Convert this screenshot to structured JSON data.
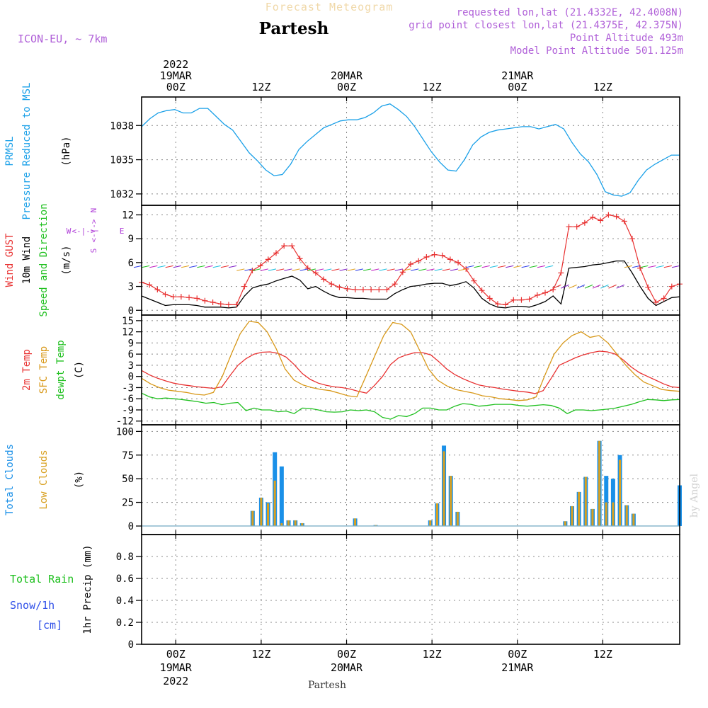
{
  "header": {
    "title": "Forecast Meteogram",
    "location": "Partesh",
    "model": "ICON-EU, ~ 7km",
    "requested": "requested lon,lat (21.4332E, 42.4008N)",
    "grid_point": "grid point closest lon,lat (21.4375E, 42.375N)",
    "point_altitude": "Point Altitude 493m",
    "model_altitude": "Model Point Altitude 501.125m"
  },
  "footer": {
    "location": "Partesh",
    "watermark": "by Angel"
  },
  "colors": {
    "pressure": "#1aa0e8",
    "gust": "#e83030",
    "wind": "#000000",
    "direction": "#20c020",
    "t2m": "#e83030",
    "sfc": "#d89818",
    "dewpt": "#20c020",
    "total_cloud": "#1a90e8",
    "low_cloud": "#d8a020",
    "rain": "#20c020",
    "snow": "#3050e8",
    "compass": "#b040d8",
    "grid": "#888888"
  },
  "chart_data": {
    "type": "meteogram",
    "time_start_hours": -4,
    "time_end_hours": 59,
    "top_axis": [
      {
        "hour": 0,
        "lines": [
          "2022",
          "19MAR",
          "00Z"
        ]
      },
      {
        "hour": 10,
        "lines": [
          "12Z"
        ]
      },
      {
        "hour": 20,
        "lines": [
          "20MAR",
          "00Z"
        ]
      },
      {
        "hour": 30,
        "lines": [
          "12Z"
        ]
      },
      {
        "hour": 40,
        "lines": [
          "21MAR",
          "00Z"
        ]
      },
      {
        "hour": 50,
        "lines": [
          "12Z"
        ]
      }
    ],
    "bottom_axis": [
      {
        "hour": 0,
        "lines": [
          "00Z",
          "19MAR",
          "2022"
        ]
      },
      {
        "hour": 10,
        "lines": [
          "12Z"
        ]
      },
      {
        "hour": 20,
        "lines": [
          "00Z",
          "20MAR"
        ]
      },
      {
        "hour": 30,
        "lines": [
          "12Z"
        ]
      },
      {
        "hour": 40,
        "lines": [
          "00Z",
          "21MAR"
        ]
      },
      {
        "hour": 50,
        "lines": [
          "12Z"
        ]
      }
    ],
    "panels": [
      {
        "id": "pressure",
        "ylabels": [
          {
            "text": "PRMSL",
            "color": "#1aa0e8"
          },
          {
            "text": "Pressure Reduced to MSL",
            "color": "#1aa0e8"
          },
          {
            "text": "(hPa)",
            "color": "#000000"
          }
        ],
        "ylim": [
          1031,
          1040.5
        ],
        "ticks": [
          1032,
          1035,
          1038
        ],
        "series": [
          {
            "name": "PRMSL",
            "values": [
              1037.9,
              1038.6,
              1039.1,
              1039.3,
              1039.4,
              1039.1,
              1039.1,
              1039.5,
              1039.5,
              1038.8,
              1038.1,
              1037.6,
              1036.6,
              1035.6,
              1034.9,
              1034.1,
              1033.6,
              1033.7,
              1034.6,
              1035.9,
              1036.6,
              1037.2,
              1037.8,
              1038.1,
              1038.4,
              1038.5,
              1038.5,
              1038.7,
              1039.1,
              1039.7,
              1039.9,
              1039.4,
              1038.8,
              1037.9,
              1036.8,
              1035.7,
              1034.8,
              1034.1,
              1034.0,
              1035.0,
              1036.3,
              1037.0,
              1037.4,
              1037.6,
              1037.7,
              1037.8,
              1037.9,
              1037.9,
              1037.7,
              1037.9,
              1038.1,
              1037.7,
              1036.5,
              1035.5,
              1034.8,
              1033.7,
              1032.2,
              1031.9,
              1031.8,
              1032.1,
              1033.2,
              1034.1,
              1034.6,
              1035.0,
              1035.4,
              1035.4
            ]
          }
        ]
      },
      {
        "id": "wind",
        "ylabels": [
          {
            "text": "Wind GUST",
            "color": "#e83030"
          },
          {
            "text": "10m Wind",
            "color": "#000000"
          },
          {
            "text": "Speed and Direction",
            "color": "#20c020"
          },
          {
            "text": "(m/s)",
            "color": "#000000"
          }
        ],
        "ylim": [
          -0.6,
          13.2
        ],
        "ticks": [
          0,
          3,
          6,
          9,
          12
        ],
        "compass": {
          "north": "N",
          "south": "S",
          "west": "W",
          "east": "E",
          "axis": "<-|->"
        },
        "series": [
          {
            "name": "Wind GUST",
            "values": [
              3.5,
              3.2,
              2.6,
              2.0,
              1.7,
              1.7,
              1.6,
              1.5,
              1.2,
              1.0,
              0.8,
              0.7,
              0.7,
              3.0,
              5.0,
              5.6,
              6.4,
              7.2,
              8.1,
              8.1,
              6.5,
              5.3,
              4.7,
              3.9,
              3.3,
              2.9,
              2.7,
              2.6,
              2.6,
              2.6,
              2.6,
              2.6,
              3.3,
              4.8,
              5.8,
              6.2,
              6.7,
              7.0,
              6.9,
              6.4,
              6.0,
              5.2,
              3.7,
              2.5,
              1.5,
              0.8,
              0.7,
              1.3,
              1.3,
              1.4,
              1.9,
              2.2,
              2.6,
              4.7,
              10.5,
              10.5,
              11.0,
              11.7,
              11.3,
              12.0,
              11.8,
              11.2,
              9.0,
              5.3,
              2.9,
              1.0,
              1.5,
              3.0,
              3.3
            ]
          },
          {
            "name": "10m Wind",
            "values": [
              1.8,
              1.4,
              1.0,
              0.6,
              0.7,
              0.7,
              0.7,
              0.6,
              0.4,
              0.4,
              0.4,
              0.3,
              0.4,
              1.8,
              2.8,
              3.1,
              3.3,
              3.7,
              4.0,
              4.3,
              3.8,
              2.7,
              3.0,
              2.4,
              1.9,
              1.6,
              1.6,
              1.5,
              1.5,
              1.4,
              1.4,
              1.4,
              2.1,
              2.6,
              3.0,
              3.1,
              3.3,
              3.4,
              3.4,
              3.1,
              3.3,
              3.6,
              2.8,
              1.5,
              0.8,
              0.4,
              0.3,
              0.5,
              0.5,
              0.4,
              0.7,
              1.1,
              1.8,
              0.8,
              5.3,
              5.4,
              5.5,
              5.7,
              5.8,
              6.0,
              6.2,
              6.2,
              4.7,
              3.0,
              1.5,
              0.6,
              1.1,
              1.6,
              1.7
            ]
          },
          {
            "name": "Direction",
            "y_level": [
              5.6,
              5.6,
              5.6,
              5.6,
              5.6,
              5.6,
              5.6,
              5.6,
              5.6,
              5.6,
              5.6,
              5.6,
              5.6,
              5.2,
              5.2,
              5.2,
              5.2,
              5.2,
              5.2,
              5.2,
              5.2,
              5.2,
              5.2,
              5.2,
              5.2,
              5.2,
              5.2,
              5.2,
              5.2,
              5.2,
              5.2,
              5.2,
              5.2,
              5.2,
              5.2,
              5.2,
              5.2,
              5.2,
              5.2,
              5.2,
              5.2,
              5.2,
              5.6,
              5.6,
              5.6,
              5.6,
              5.6,
              5.6,
              5.6,
              5.6,
              5.6,
              5.6,
              5.6,
              3.2,
              3.2,
              3.2,
              3.2,
              3.2,
              3.2,
              3.2,
              3.2,
              3.2,
              5.6,
              5.6,
              5.6,
              5.6,
              5.6,
              5.6,
              5.6
            ]
          }
        ]
      },
      {
        "id": "temperature",
        "ylabels": [
          {
            "text": "2m Temp",
            "color": "#e83030"
          },
          {
            "text": "SFC Temp",
            "color": "#d89818"
          },
          {
            "text": "dewpt Temp",
            "color": "#20c020"
          },
          {
            "text": "(C)",
            "color": "#000000"
          }
        ],
        "ylim": [
          -13,
          16.5
        ],
        "ticks": [
          -12,
          -9,
          -6,
          -3,
          0,
          3,
          6,
          9,
          12,
          15
        ],
        "series": [
          {
            "name": "2m Temp",
            "values": [
              1.6,
              0.4,
              -0.5,
              -1.2,
              -1.8,
              -2.2,
              -2.5,
              -2.8,
              -3.0,
              -3.2,
              -2.8,
              0.2,
              3.0,
              4.8,
              6.0,
              6.5,
              6.6,
              6.2,
              5.2,
              3.2,
              0.8,
              -0.8,
              -1.8,
              -2.4,
              -2.8,
              -3.0,
              -3.4,
              -4.0,
              -4.5,
              -2.4,
              0.0,
              3.2,
              5.0,
              5.8,
              6.4,
              6.4,
              5.8,
              4.0,
              2.0,
              0.5,
              -0.6,
              -1.5,
              -2.3,
              -2.7,
              -3.0,
              -3.4,
              -3.7,
              -4.0,
              -4.2,
              -4.6,
              -3.8,
              -0.5,
              3.0,
              4.0,
              5.0,
              5.8,
              6.4,
              6.8,
              6.6,
              6.0,
              4.4,
              2.5,
              1.0,
              0.0,
              -1.0,
              -2.0,
              -2.8,
              -3.0
            ]
          },
          {
            "name": "SFC Temp",
            "values": [
              -0.5,
              -2.0,
              -3.0,
              -3.7,
              -4.0,
              -4.3,
              -4.8,
              -5.0,
              -4.3,
              0.0,
              6.0,
              11.5,
              14.8,
              14.5,
              12.0,
              7.5,
              2.0,
              -1.0,
              -2.3,
              -3.0,
              -3.5,
              -3.8,
              -4.5,
              -5.2,
              -5.5,
              0.0,
              5.5,
              11.0,
              14.5,
              14.0,
              12.0,
              7.0,
              2.0,
              -1.0,
              -2.5,
              -3.5,
              -4.0,
              -4.5,
              -5.2,
              -5.5,
              -6.0,
              -6.2,
              -6.5,
              -6.3,
              -5.5,
              0.5,
              6.0,
              9.0,
              11.0,
              12.0,
              10.5,
              11.0,
              9.0,
              6.0,
              3.0,
              0.5,
              -1.5,
              -2.5,
              -3.5,
              -3.8,
              -4.0
            ]
          },
          {
            "name": "dewpt Temp",
            "values": [
              -4.5,
              -5.5,
              -6.0,
              -5.8,
              -6.0,
              -6.2,
              -6.5,
              -6.8,
              -7.2,
              -7.0,
              -7.6,
              -7.2,
              -7.0,
              -9.2,
              -8.5,
              -9.0,
              -9.0,
              -9.5,
              -9.3,
              -10.0,
              -8.5,
              -8.6,
              -9.0,
              -9.5,
              -9.6,
              -9.5,
              -9.0,
              -9.2,
              -9.0,
              -9.5,
              -11.0,
              -11.5,
              -10.5,
              -10.8,
              -10.0,
              -8.5,
              -8.5,
              -9.0,
              -9.0,
              -8.0,
              -7.3,
              -7.5,
              -8.0,
              -7.8,
              -7.5,
              -7.5,
              -7.5,
              -7.8,
              -8.0,
              -7.8,
              -7.6,
              -7.8,
              -8.5,
              -10.0,
              -9.0,
              -9.0,
              -9.2,
              -9.0,
              -8.8,
              -8.5,
              -8.0,
              -7.5,
              -6.8,
              -6.2,
              -6.3,
              -6.5,
              -6.3,
              -6.2
            ]
          }
        ]
      },
      {
        "id": "clouds",
        "ylabels": [
          {
            "text": "Total Clouds",
            "color": "#1a90e8"
          },
          {
            "text": "Low Clouds",
            "color": "#d8a020"
          },
          {
            "text": "(%)",
            "color": "#000000"
          }
        ],
        "ylim": [
          -9,
          107
        ],
        "ticks": [
          0,
          25,
          50,
          75,
          100
        ],
        "bars": [
          {
            "hour": 9.0,
            "total": 16,
            "low": 16
          },
          {
            "hour": 10.0,
            "total": 30,
            "low": 30
          },
          {
            "hour": 10.8,
            "total": 25,
            "low": 24
          },
          {
            "hour": 11.6,
            "total": 78,
            "low": 48
          },
          {
            "hour": 12.4,
            "total": 63,
            "low": 3
          },
          {
            "hour": 13.2,
            "total": 6,
            "low": 6
          },
          {
            "hour": 14.0,
            "total": 6,
            "low": 6
          },
          {
            "hour": 14.8,
            "total": 3,
            "low": 3
          },
          {
            "hour": 21.0,
            "total": 8,
            "low": 8
          },
          {
            "hour": 23.4,
            "total": 1,
            "low": 1
          },
          {
            "hour": 29.8,
            "total": 6,
            "low": 6
          },
          {
            "hour": 30.6,
            "total": 24,
            "low": 24
          },
          {
            "hour": 31.4,
            "total": 85,
            "low": 79
          },
          {
            "hour": 32.2,
            "total": 53,
            "low": 53
          },
          {
            "hour": 33.0,
            "total": 15,
            "low": 15
          },
          {
            "hour": 45.6,
            "total": 5,
            "low": 5
          },
          {
            "hour": 46.4,
            "total": 21,
            "low": 21
          },
          {
            "hour": 47.2,
            "total": 36,
            "low": 36
          },
          {
            "hour": 48.0,
            "total": 52,
            "low": 52
          },
          {
            "hour": 48.8,
            "total": 18,
            "low": 18
          },
          {
            "hour": 49.6,
            "total": 90,
            "low": 90
          },
          {
            "hour": 50.4,
            "total": 53,
            "low": 25
          },
          {
            "hour": 51.2,
            "total": 50,
            "low": 25
          },
          {
            "hour": 52.0,
            "total": 75,
            "low": 70
          },
          {
            "hour": 52.8,
            "total": 22,
            "low": 22
          },
          {
            "hour": 53.6,
            "total": 13,
            "low": 13
          },
          {
            "hour": 59.0,
            "total": 43,
            "low": 0
          }
        ]
      },
      {
        "id": "precip",
        "ylabels": [
          {
            "text": "1hr Precip (mm)",
            "color": "#000000"
          }
        ],
        "side_labels": [
          {
            "text": "Total  Rain",
            "color": "#20c020"
          },
          {
            "text": "Snow/1h",
            "color": "#3050e8"
          },
          {
            "text": "[cm]",
            "color": "#3050e8"
          }
        ],
        "ylim": [
          0,
          1.0
        ],
        "ticks": [
          0,
          0.2,
          0.4,
          0.6,
          0.8
        ],
        "tick_labels": [
          "0",
          "0.2",
          "0.4",
          "0.6",
          "0.8"
        ],
        "series": []
      }
    ]
  }
}
